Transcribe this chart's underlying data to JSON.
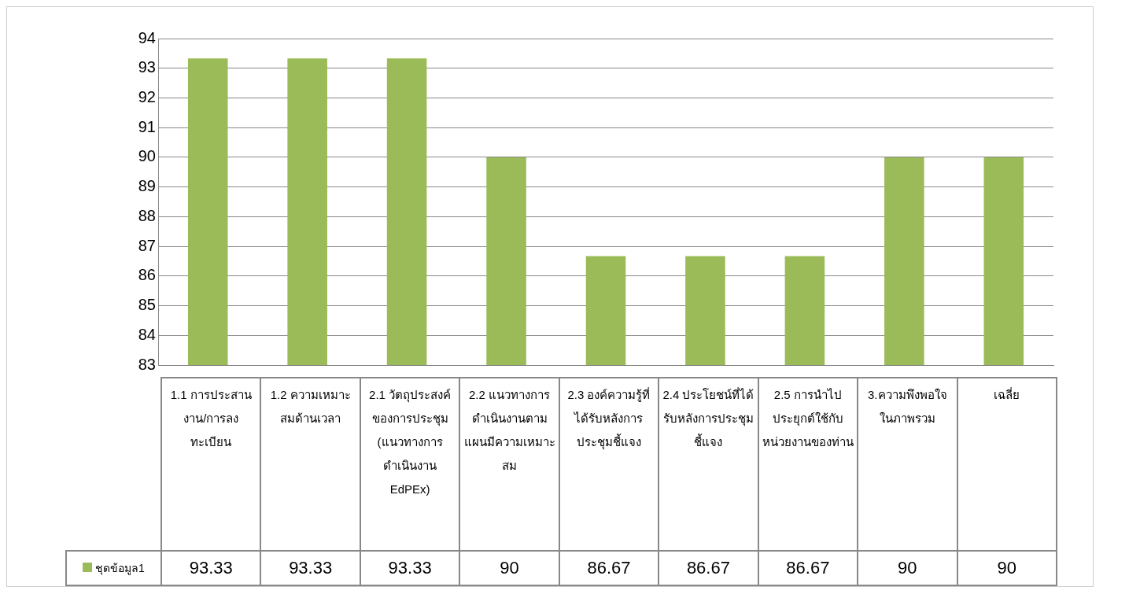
{
  "chart_data": {
    "type": "bar",
    "categories": [
      "1.1 การประสานงาน/การลงทะเบียน",
      "1.2 ความเหมาะสมด้านเวลา",
      "2.1 วัตถุประสงค์ของการประชุม (แนวทางการดำเนินงาน EdPEx)",
      "2.2 แนวทางการดำเนินงานตามแผนมีความเหมาะสม",
      "2.3 องค์ความรู้ที่ได้รับหลังการประชุมชี้แจง",
      "2.4 ประโยชน์ที่ได้รับหลังการประชุมชี้แจง",
      "2.5 การนำไปประยุกต์ใช้กับหน่วยงานของท่าน",
      "3.ความพึงพอใจในภาพรวม",
      "เฉลี่ย"
    ],
    "series": [
      {
        "name": "ชุดข้อมูล1",
        "color": "#9bbb59",
        "values": [
          93.33,
          93.33,
          93.33,
          90,
          86.67,
          86.67,
          86.67,
          90,
          90
        ]
      }
    ],
    "ylim": [
      83,
      94
    ],
    "yticks": [
      83,
      84,
      85,
      86,
      87,
      88,
      89,
      90,
      91,
      92,
      93,
      94
    ],
    "grid": "y",
    "legend": "bottom",
    "data_labels": true
  }
}
